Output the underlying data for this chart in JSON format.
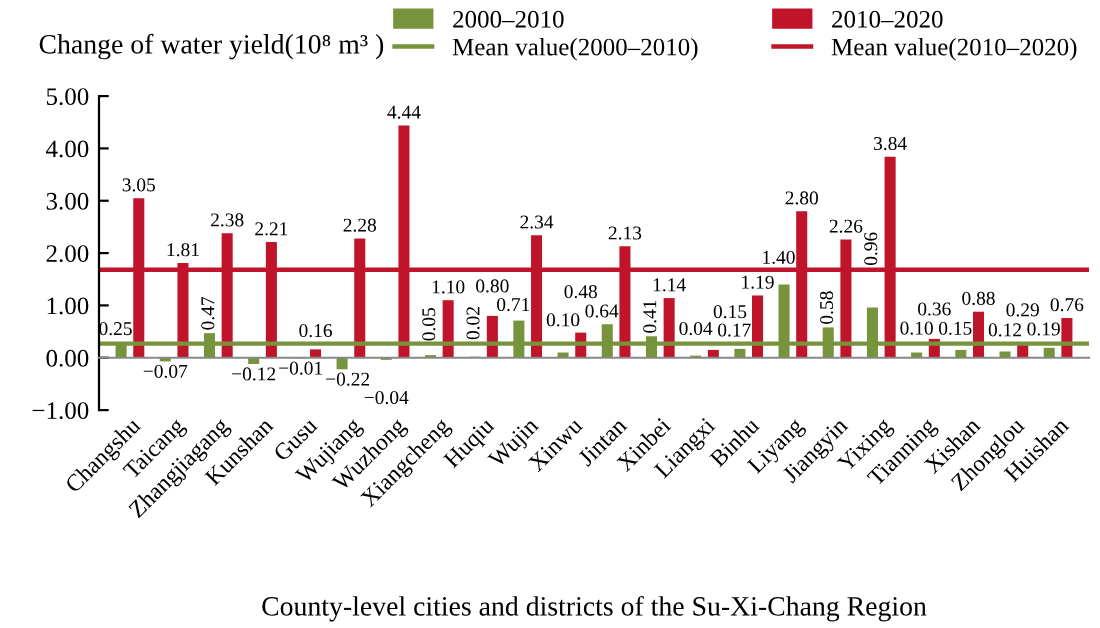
{
  "chart_data": {
    "type": "bar",
    "title": "Change of water yield(10⁸ m³ )",
    "xlabel": "County-level cities and districts of the Su-Xi-Chang Region",
    "categories": [
      "Changshu",
      "Taicang",
      "Zhangjiagang",
      "Kunshan",
      "Gusu",
      "Wujiang",
      "Wuzhong",
      "Xiangcheng",
      "Huqiu",
      "Wujin",
      "Xinwu",
      "Jintan",
      "Xinbei",
      "Liangxi",
      "Binhu",
      "Liyang",
      "Jiangyin",
      "Yixing",
      "Tianning",
      "Xishan",
      "Zhonglou",
      "Huishan"
    ],
    "series": [
      {
        "name": "2000–2010",
        "color": "#77933c",
        "values": [
          0.25,
          -0.07,
          0.47,
          -0.12,
          -0.01,
          -0.22,
          -0.04,
          0.05,
          0.02,
          0.71,
          0.1,
          0.64,
          0.41,
          0.04,
          0.17,
          1.4,
          0.58,
          0.96,
          0.1,
          0.15,
          0.12,
          0.19
        ],
        "value_labels": [
          "0.25",
          "−0.07",
          "0.47",
          "−0.12",
          "−0.01",
          "−0.22",
          "−0.04",
          "0.05",
          "0.02",
          "0.71",
          "0.10",
          "0.64",
          "0.41",
          "0.04",
          "0.17",
          "1.40",
          "0.58",
          "0.96",
          "0.10",
          "0.15",
          "0.12",
          "0.19"
        ]
      },
      {
        "name": "2010–2020",
        "color": "#c0142a",
        "values": [
          3.05,
          1.81,
          2.38,
          2.21,
          0.16,
          2.28,
          4.44,
          1.1,
          0.8,
          2.34,
          0.48,
          2.13,
          1.14,
          0.15,
          1.19,
          2.8,
          2.26,
          3.84,
          0.36,
          0.88,
          0.29,
          0.76
        ],
        "value_labels": [
          "3.05",
          "1.81",
          "2.38",
          "2.21",
          "0.16",
          "2.28",
          "4.44",
          "1.10",
          "0.80",
          "2.34",
          "0.48",
          "2.13",
          "1.14",
          "0.15",
          "1.19",
          "2.80",
          "2.26",
          "3.84",
          "0.36",
          "0.88",
          "0.29",
          "0.76"
        ]
      }
    ],
    "ref_lines": [
      {
        "axis": "y",
        "value": 0.27,
        "label": "Mean value(2000–2010)",
        "color": "#77933c"
      },
      {
        "axis": "y",
        "value": 1.68,
        "label": "Mean value(2010–2020)",
        "color": "#c0142a"
      }
    ],
    "ylim": [
      -1,
      5
    ],
    "yticks": [
      {
        "value": -1,
        "label": "−1.00"
      },
      {
        "value": 0,
        "label": "0.00"
      },
      {
        "value": 1,
        "label": "1.00"
      },
      {
        "value": 2,
        "label": "2.00"
      },
      {
        "value": 3,
        "label": "3.00"
      },
      {
        "value": 4,
        "label": "4.00"
      },
      {
        "value": 5,
        "label": "5.00"
      }
    ],
    "grid": false,
    "legend": "top"
  }
}
